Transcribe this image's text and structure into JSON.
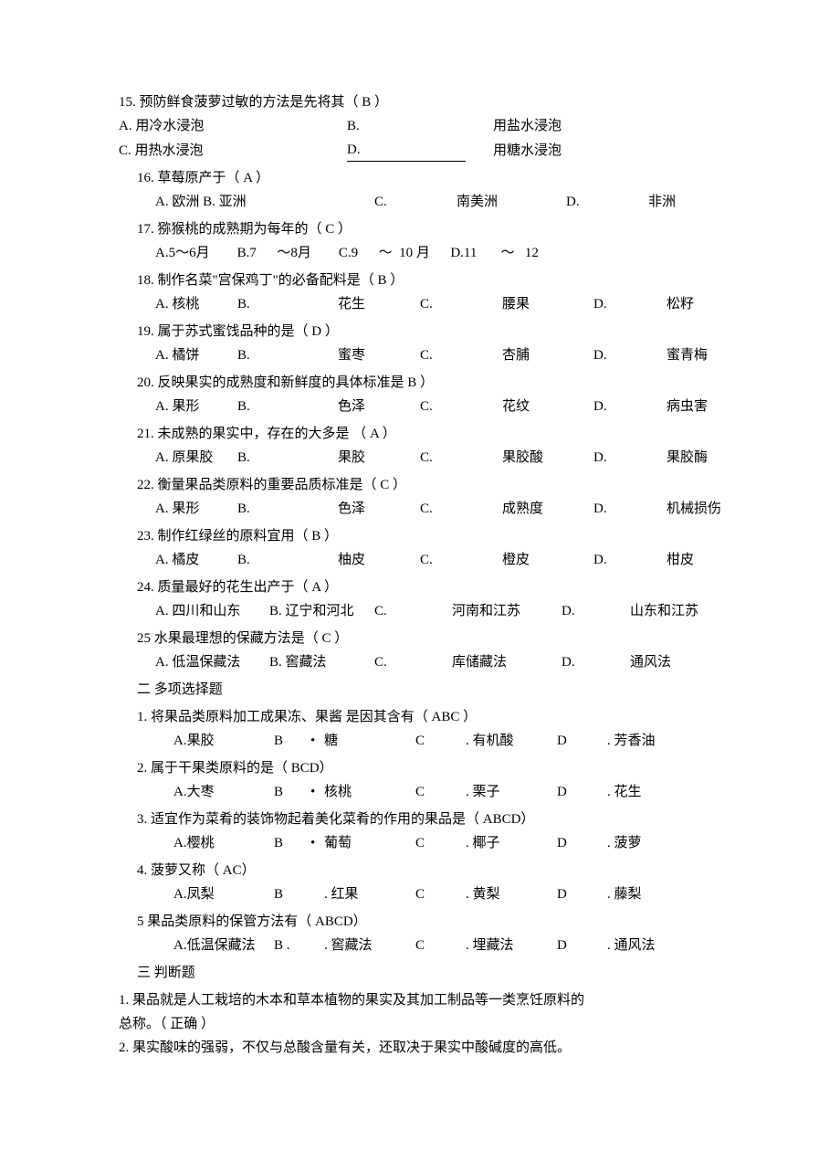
{
  "q15": {
    "stem": "15. 预防鲜食菠萝过敏的方法是先将其（ B ）",
    "a": "A. 用冷水浸泡",
    "bL": "B.",
    "bT": "用盐水浸泡",
    "c": "C. 用热水浸泡",
    "dL": "D.",
    "dT": "用糖水浸泡"
  },
  "single": [
    {
      "n": "16",
      "stem": "16.  草莓原产于（ A ）",
      "a": "A. 欧洲  B. 亚洲",
      "bL": "",
      "bT": "",
      "cL": "C.",
      "cT": "南美洲",
      "dL": "D.",
      "dT": "非洲",
      "wide": true
    },
    {
      "n": "17",
      "stem": "17.  猕猴桃的成熟期为每年的（ C   ）",
      "raw": "A.5～6月        B.7      ～8月        C.9      ～  10 月      D.11       ～   12"
    },
    {
      "n": "18",
      "stem": "18.  制作名菜\"宫保鸡丁\"的必备配料是（ B ）",
      "a": "A. 核桃",
      "bL": "B.",
      "bT": "花生",
      "cL": "C.",
      "cT": "腰果",
      "dL": "D.",
      "dT": "松籽"
    },
    {
      "n": "19",
      "stem": "19.  属于苏式蜜饯品种的是（ D ）",
      "a": "A. 橘饼",
      "bL": "B.",
      "bT": "蜜枣",
      "cL": "C.",
      "cT": "杏脯",
      "dL": "D.",
      "dT": "蜜青梅"
    },
    {
      "n": "20",
      "stem": "20.  反映果实的成熟度和新鲜度的具体标准是         B ）",
      "a": "A. 果形",
      "bL": "B.",
      "bT": "色泽",
      "cL": "C.",
      "cT": "花纹",
      "dL": "D.",
      "dT": "病虫害",
      "sub": "（"
    },
    {
      "n": "21",
      "stem": "21.  未成熟的果实中，存在的大多是  （ A ）",
      "a": "A. 原果胶",
      "bL": "B.",
      "bT": "果胶",
      "cL": "C.",
      "cT": "果胶酸",
      "dL": "D.",
      "dT": "果胶酶"
    },
    {
      "n": "22",
      "stem": "22.  衡量果品类原料的重要品质标准是（ C    ）",
      "a": "A. 果形",
      "bL": "B.",
      "bT": "色泽",
      "cL": "C.",
      "cT": "成熟度",
      "dL": "D.",
      "dT": "机械损伤"
    },
    {
      "n": "23",
      "stem": "23.  制作红绿丝的原料宜用（ B ）",
      "a": "A. 橘皮",
      "bL": "B.",
      "bT": "柚皮",
      "cL": "C.",
      "cT": "橙皮",
      "dL": "D.",
      "dT": "柑皮"
    },
    {
      "n": "24",
      "stem": "24.  质量最好的花生出产于（ A ）",
      "a": "A. 四川和山东",
      "bL": "B. 辽宁和河北",
      "bT": "",
      "cL": "C.",
      "cT": "河南和江苏",
      "dL": "D.",
      "dT": "山东和江苏",
      "tight": true
    },
    {
      "n": "25",
      "stem": "25    水果最理想的保藏方法是（ C ）",
      "a": "A. 低温保藏法",
      "bL": "B. 窖藏法",
      "bT": "",
      "cL": "C.",
      "cT": "库储藏法",
      "dL": "D.",
      "dT": "通风法",
      "tight": true
    }
  ],
  "sec2": "二    多项选择题",
  "multi": [
    {
      "n": "1",
      "stem": "1.  将果品类原料加工成果冻、果酱   是因其含有（     ABC ）",
      "a": "A.果胶",
      "bT": "糖",
      "cT": "有机酸",
      "dT": "芳香油",
      "comma": "，"
    },
    {
      "n": "2",
      "stem": "2.  属于干果类原料的是（ BCD）",
      "a": "A.大枣",
      "bT": "核桃",
      "cT": "栗子",
      "dT": "花生"
    },
    {
      "n": "3",
      "stem": "3.  适宜作为菜肴的装饰物起着美化菜肴的作用的果品是（      ABCD）",
      "a": "A.樱桃",
      "bT": "葡萄",
      "cT": "椰子",
      "dT": "菠萝"
    },
    {
      "n": "4",
      "stem": "4.  菠萝又称（ AC）",
      "a": "A.凤梨",
      "bT": "红果",
      "cT": "黄梨",
      "dT": "藤梨",
      "noBullet": true
    },
    {
      "n": "5",
      "stem": "5    果品类原料的保管方法有（ ABCD）",
      "a": "A.低温保藏法",
      "bT": "窖藏法",
      "cT": "埋藏法",
      "dT": "通风法",
      "noBullet": true,
      "bPlain": "B .",
      "cPlain": "C",
      "dPlain": "D"
    }
  ],
  "sec3": "三    判断题",
  "tf": [
    "1. 果品就是人工栽培的木本和草本植物的果实及其加工制品等一类烹饪原料的",
    "总称。（ 正确 ）",
    "2. 果实酸味的强弱，不仅与总酸含量有关，还取决于果实中酸碱度的高低。"
  ]
}
